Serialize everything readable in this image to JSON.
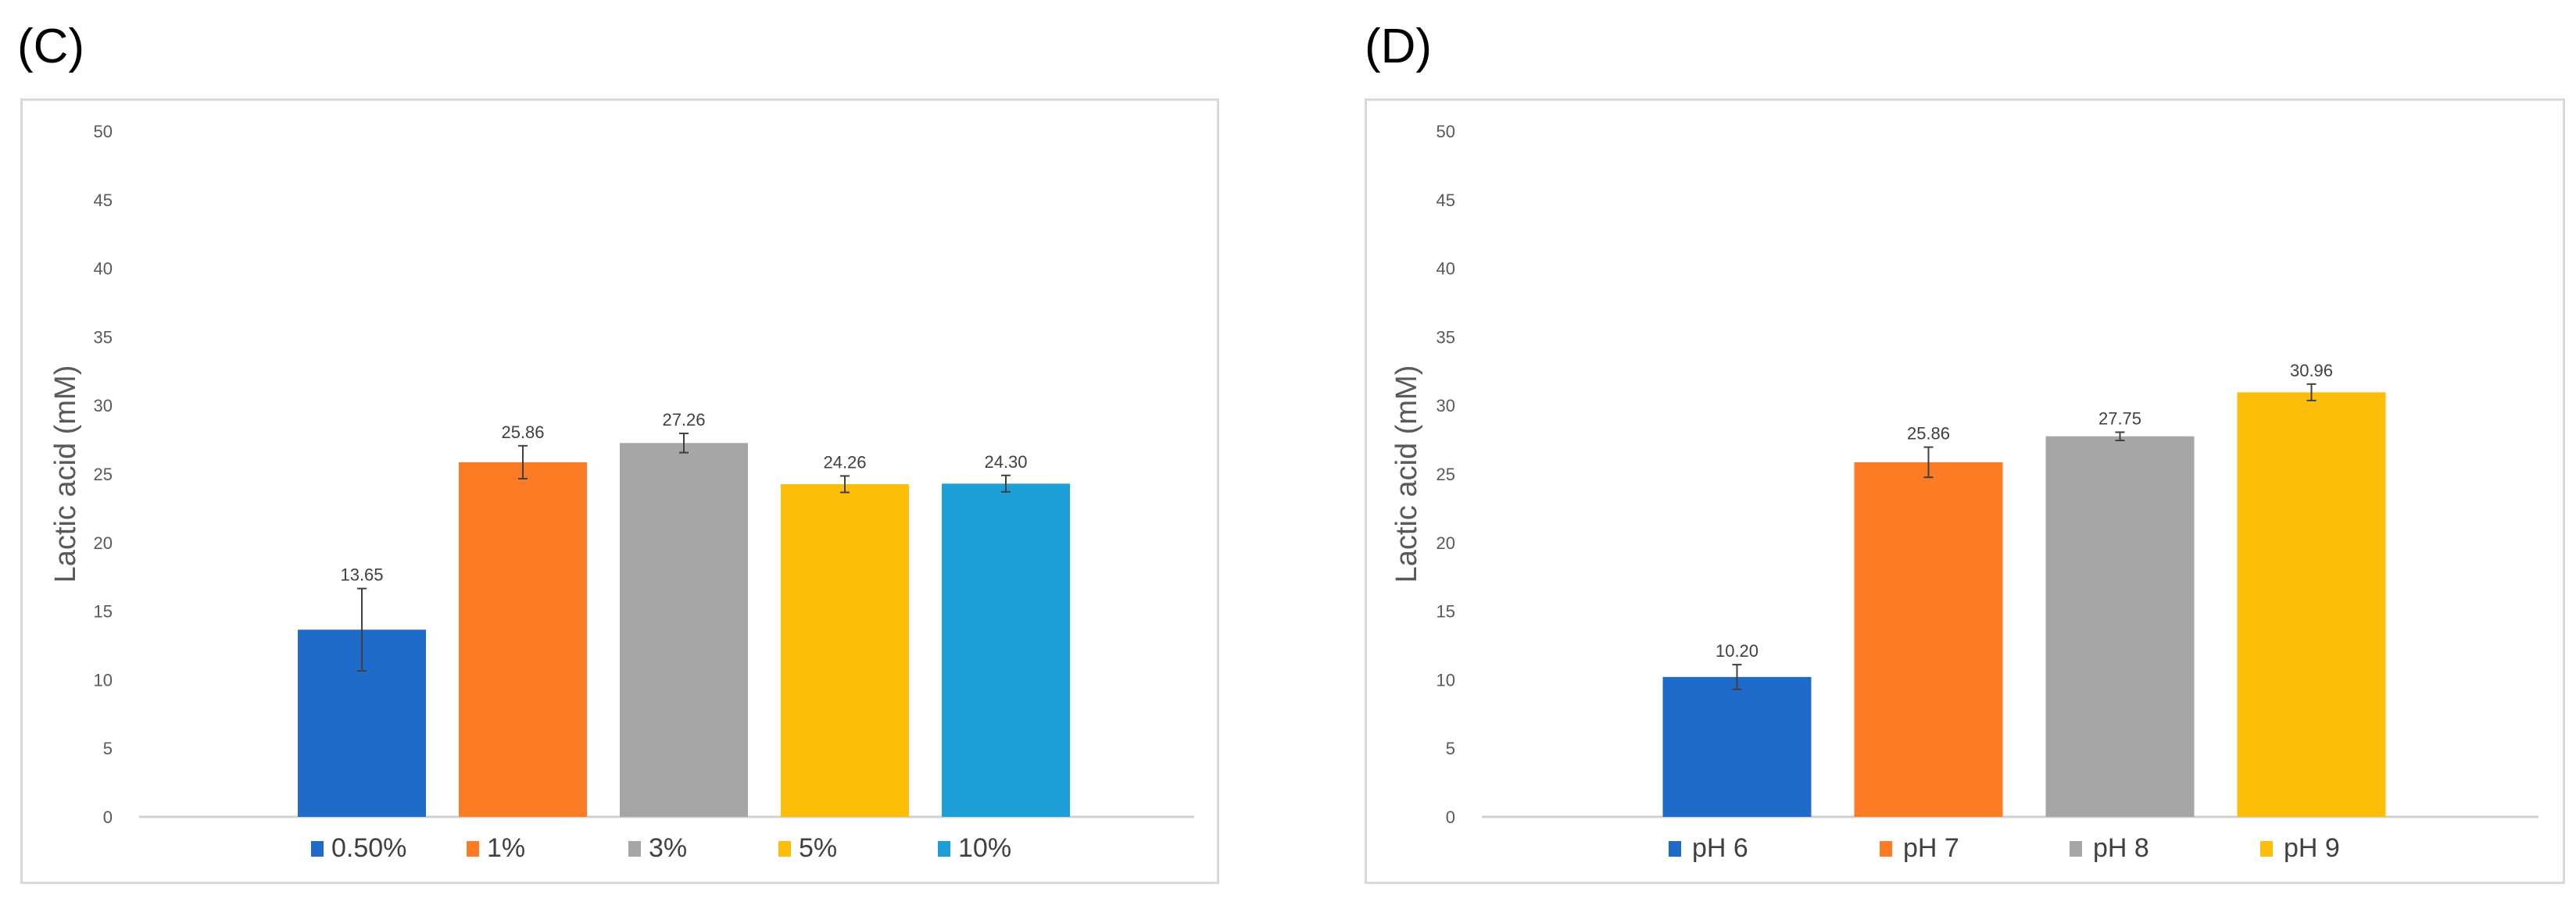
{
  "panels": {
    "c": {
      "label": "(C)"
    },
    "d": {
      "label": "(D)"
    }
  },
  "chart_data": [
    {
      "type": "bar",
      "panel": "(C)",
      "ylabel": "Lactic acid (mM)",
      "xlabel": "",
      "ylim": [
        0,
        50
      ],
      "yticks": [
        0,
        5,
        10,
        15,
        20,
        25,
        30,
        35,
        40,
        45,
        50
      ],
      "grid": false,
      "legend_position": "bottom",
      "categories": [
        "0.50%",
        "1%",
        "3%",
        "5%",
        "10%"
      ],
      "values": [
        13.65,
        25.86,
        27.26,
        24.26,
        24.3
      ],
      "data_labels": [
        "13.65",
        "25.86",
        "27.26",
        "24.26",
        "24.30"
      ],
      "errors": [
        3.0,
        1.2,
        0.7,
        0.6,
        0.6
      ],
      "colors": [
        "#1f6bc9",
        "#fb7c25",
        "#a6a6a6",
        "#fdbe0a",
        "#1e9fd8"
      ]
    },
    {
      "type": "bar",
      "panel": "(D)",
      "ylabel": "Lactic acid (mM)",
      "xlabel": "",
      "ylim": [
        0,
        50
      ],
      "yticks": [
        0,
        5,
        10,
        15,
        20,
        25,
        30,
        35,
        40,
        45,
        50
      ],
      "grid": false,
      "legend_position": "bottom",
      "categories": [
        "pH 6",
        "pH 7",
        "pH 8",
        "pH 9"
      ],
      "values": [
        10.2,
        25.86,
        27.75,
        30.96
      ],
      "data_labels": [
        "10.20",
        "25.86",
        "27.75",
        "30.96"
      ],
      "errors": [
        0.9,
        1.1,
        0.3,
        0.6
      ],
      "colors": [
        "#1f6bc9",
        "#fb7c25",
        "#a6a6a6",
        "#fdbe0a"
      ]
    }
  ]
}
